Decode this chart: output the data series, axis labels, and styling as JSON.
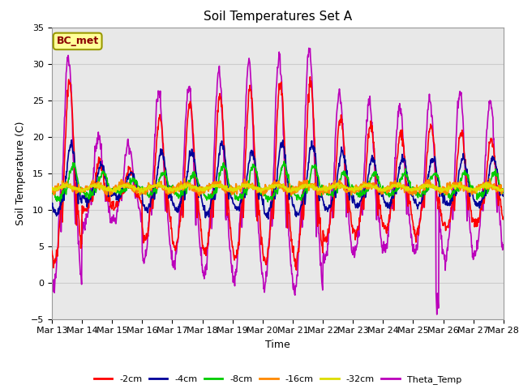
{
  "title": "Soil Temperatures Set A",
  "xlabel": "Time",
  "ylabel": "Soil Temperature (C)",
  "ylim": [
    -5,
    35
  ],
  "annotation_text": "BC_met",
  "annotation_color": "#8B0000",
  "annotation_bg": "#FFFF99",
  "series_colors": {
    "-2cm": "#FF0000",
    "-4cm": "#000099",
    "-8cm": "#00CC00",
    "-16cm": "#FF8800",
    "-32cm": "#DDDD00",
    "Theta_Temp": "#BB00BB"
  },
  "x_tick_labels": [
    "Mar 13",
    "Mar 14",
    "Mar 15",
    "Mar 16",
    "Mar 17",
    "Mar 18",
    "Mar 19",
    "Mar 20",
    "Mar 21",
    "Mar 22",
    "Mar 23",
    "Mar 24",
    "Mar 25",
    "Mar 26",
    "Mar 27",
    "Mar 28"
  ],
  "grid_color": "#CCCCCC",
  "bg_color": "#E8E8E8",
  "fig_bg": "#FFFFFF"
}
